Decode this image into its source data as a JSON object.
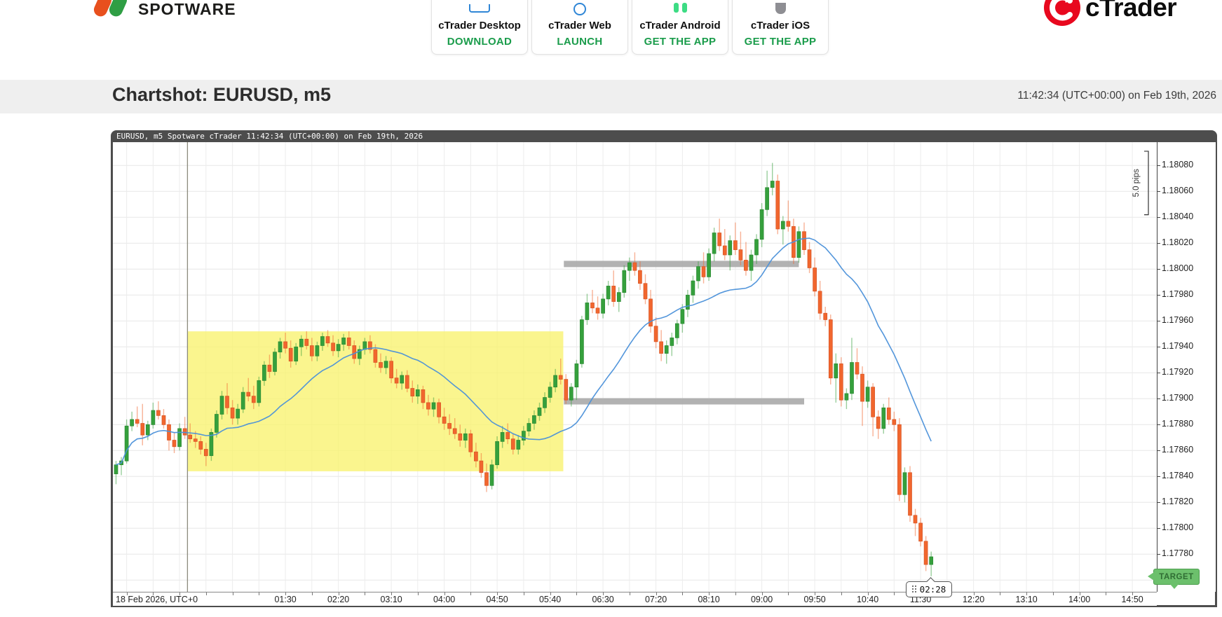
{
  "header": {
    "spotware_logo_text": "SPOTWARE",
    "ctrader_logo_text": "cTrader",
    "accent_green": "#1a9c4b",
    "logo_red": "#e8501e",
    "logo_green": "#2f9e44",
    "apps": [
      {
        "name": "cTrader Desktop",
        "action": "DOWNLOAD",
        "icon": "desktop-icon"
      },
      {
        "name": "cTrader Web",
        "action": "LAUNCH",
        "icon": "globe-icon"
      },
      {
        "name": "cTrader Android",
        "action": "GET THE APP",
        "icon": "android-icon"
      },
      {
        "name": "cTrader iOS",
        "action": "GET THE APP",
        "icon": "apple-icon"
      }
    ]
  },
  "titlebar": {
    "title": "Chartshot: EURUSD, m5",
    "timestamp": "11:42:34 (UTC+00:00) on Feb 19th, 2026"
  },
  "chart": {
    "header_text": "EURUSD, m5 Spotware cTrader 11:42:34 (UTC+00:00) on Feb 19th, 2026",
    "date_label": "18 Feb 2026, UTC+0",
    "colors": {
      "up": "#35a03c",
      "up_stroke": "#2c8a33",
      "down": "#f1662e",
      "down_stroke": "#d85525",
      "grid": "#ececec",
      "frame": "#4d4d4d",
      "yellow_zone": "rgba(249,242,110,0.78)",
      "gray_bar": "#ababab",
      "separator": "#8b8a7d"
    }
  },
  "chart_data": {
    "type": "candlestick",
    "symbol": "EURUSD",
    "timeframe": "m5",
    "title": "EURUSD, m5 Spotware cTrader",
    "y_axis": {
      "min": 1.17751,
      "max": 1.18098,
      "tick_step": 0.0002,
      "ticks": [
        "1.18080",
        "1.18060",
        "1.18040",
        "1.18020",
        "1.18000",
        "1.17980",
        "1.17960",
        "1.17940",
        "1.17920",
        "1.17900",
        "1.17880",
        "1.17860",
        "1.17840",
        "1.17820",
        "1.17800",
        "1.17780"
      ]
    },
    "x_ticks": [
      "01:30",
      "02:20",
      "03:10",
      "04:00",
      "04:50",
      "05:40",
      "06:30",
      "07:20",
      "08:10",
      "09:00",
      "09:50",
      "10:40",
      "11:30",
      "12:20",
      "13:10",
      "14:00",
      "14:50"
    ],
    "indicator": {
      "type": "sma",
      "period": 20,
      "color": "#4a90d9"
    },
    "scale_bracket": {
      "label": "5.0 pips",
      "top": 1.18091,
      "bottom": 1.18042
    },
    "annotations": {
      "yellow_zone": {
        "from": "00:00",
        "to": "05:55",
        "top": 1.17952,
        "bottom": 1.17844
      },
      "day_separator": {
        "time": "00:00"
      },
      "resistance_bar": {
        "from": "05:55",
        "to": "09:35",
        "price": 1.18004
      },
      "support_bar": {
        "from": "05:55",
        "to": "09:40",
        "price": 1.17898
      },
      "target": {
        "label": "TARGET",
        "price": 1.17763,
        "color": "#6cc06c"
      },
      "countdown": {
        "label": "02:28",
        "time": "11:40"
      }
    },
    "candles": [
      [
        "22:50",
        1.17842,
        1.17852,
        1.17834,
        1.17849
      ],
      [
        "22:55",
        1.17849,
        1.17855,
        1.17841,
        1.17852
      ],
      [
        "23:00",
        1.17852,
        1.17884,
        1.1785,
        1.17879
      ],
      [
        "23:05",
        1.17879,
        1.1789,
        1.17875,
        1.17884
      ],
      [
        "23:10",
        1.17884,
        1.17894,
        1.17878,
        1.17881
      ],
      [
        "23:15",
        1.17881,
        1.17896,
        1.17864,
        1.17872
      ],
      [
        "23:20",
        1.17872,
        1.17883,
        1.17868,
        1.1788
      ],
      [
        "23:25",
        1.1788,
        1.17897,
        1.17877,
        1.17891
      ],
      [
        "23:30",
        1.17891,
        1.17898,
        1.17884,
        1.17887
      ],
      [
        "23:35",
        1.17887,
        1.17892,
        1.17877,
        1.1788
      ],
      [
        "23:40",
        1.1788,
        1.17884,
        1.1786,
        1.17868
      ],
      [
        "23:45",
        1.17868,
        1.17874,
        1.17858,
        1.17863
      ],
      [
        "23:50",
        1.17863,
        1.17881,
        1.1786,
        1.17877
      ],
      [
        "23:55",
        1.17877,
        1.17886,
        1.17869,
        1.17872
      ],
      [
        "00:00",
        1.17872,
        1.17881,
        1.17866,
        1.17869
      ],
      [
        "00:05",
        1.17869,
        1.17875,
        1.17862,
        1.17867
      ],
      [
        "00:10",
        1.17867,
        1.17871,
        1.17857,
        1.17861
      ],
      [
        "00:15",
        1.17861,
        1.17866,
        1.17848,
        1.17856
      ],
      [
        "00:20",
        1.17856,
        1.17877,
        1.17852,
        1.17874
      ],
      [
        "00:25",
        1.17874,
        1.17891,
        1.1787,
        1.17888
      ],
      [
        "00:30",
        1.17888,
        1.17906,
        1.17884,
        1.17902
      ],
      [
        "00:35",
        1.17902,
        1.17912,
        1.17888,
        1.17893
      ],
      [
        "00:40",
        1.17893,
        1.17899,
        1.1788,
        1.17885
      ],
      [
        "00:45",
        1.17885,
        1.17896,
        1.1788,
        1.17892
      ],
      [
        "00:50",
        1.17892,
        1.17909,
        1.17889,
        1.17905
      ],
      [
        "00:55",
        1.17905,
        1.17916,
        1.17898,
        1.17902
      ],
      [
        "01:00",
        1.17902,
        1.1791,
        1.17892,
        1.17897
      ],
      [
        "01:05",
        1.17897,
        1.17917,
        1.17894,
        1.17914
      ],
      [
        "01:10",
        1.17914,
        1.17929,
        1.1791,
        1.17926
      ],
      [
        "01:15",
        1.17926,
        1.17934,
        1.17916,
        1.17921
      ],
      [
        "01:20",
        1.17921,
        1.17939,
        1.17918,
        1.17936
      ],
      [
        "01:25",
        1.17936,
        1.17947,
        1.17931,
        1.17944
      ],
      [
        "01:30",
        1.17944,
        1.17951,
        1.17935,
        1.17939
      ],
      [
        "01:35",
        1.17939,
        1.17945,
        1.17924,
        1.17929
      ],
      [
        "01:40",
        1.17929,
        1.17943,
        1.17926,
        1.1794
      ],
      [
        "01:45",
        1.1794,
        1.17949,
        1.17933,
        1.17946
      ],
      [
        "01:50",
        1.17946,
        1.17952,
        1.17938,
        1.17941
      ],
      [
        "01:55",
        1.17941,
        1.17947,
        1.17929,
        1.17933
      ],
      [
        "02:00",
        1.17933,
        1.17944,
        1.17929,
        1.17941
      ],
      [
        "02:05",
        1.17941,
        1.17951,
        1.17937,
        1.17948
      ],
      [
        "02:10",
        1.17948,
        1.17953,
        1.1794,
        1.17943
      ],
      [
        "02:15",
        1.17943,
        1.17949,
        1.17933,
        1.17937
      ],
      [
        "02:20",
        1.17937,
        1.17946,
        1.17932,
        1.17942
      ],
      [
        "02:25",
        1.17942,
        1.1795,
        1.17937,
        1.17947
      ],
      [
        "02:30",
        1.17947,
        1.17952,
        1.17938,
        1.17941
      ],
      [
        "02:35",
        1.17941,
        1.17945,
        1.17927,
        1.17931
      ],
      [
        "02:40",
        1.17931,
        1.17941,
        1.17926,
        1.17938
      ],
      [
        "02:45",
        1.17938,
        1.17947,
        1.17934,
        1.17944
      ],
      [
        "02:50",
        1.17944,
        1.17949,
        1.17935,
        1.17938
      ],
      [
        "02:55",
        1.17938,
        1.17942,
        1.17924,
        1.17928
      ],
      [
        "03:00",
        1.17928,
        1.17935,
        1.1792,
        1.17924
      ],
      [
        "03:05",
        1.17924,
        1.17933,
        1.17919,
        1.17929
      ],
      [
        "03:10",
        1.17929,
        1.17932,
        1.17912,
        1.17916
      ],
      [
        "03:15",
        1.17916,
        1.17923,
        1.17908,
        1.17912
      ],
      [
        "03:20",
        1.17912,
        1.17921,
        1.17907,
        1.17918
      ],
      [
        "03:25",
        1.17918,
        1.17922,
        1.17905,
        1.17908
      ],
      [
        "03:30",
        1.17908,
        1.17914,
        1.17897,
        1.17902
      ],
      [
        "03:35",
        1.17902,
        1.17911,
        1.17896,
        1.17907
      ],
      [
        "03:40",
        1.17907,
        1.1791,
        1.17892,
        1.17897
      ],
      [
        "03:45",
        1.17897,
        1.17903,
        1.17887,
        1.17892
      ],
      [
        "03:50",
        1.17892,
        1.17901,
        1.17886,
        1.17897
      ],
      [
        "03:55",
        1.17897,
        1.179,
        1.17881,
        1.17886
      ],
      [
        "04:00",
        1.17886,
        1.17893,
        1.17876,
        1.17881
      ],
      [
        "04:05",
        1.17881,
        1.17888,
        1.17872,
        1.17877
      ],
      [
        "04:10",
        1.17877,
        1.17885,
        1.17869,
        1.17873
      ],
      [
        "04:15",
        1.17873,
        1.1788,
        1.17863,
        1.17868
      ],
      [
        "04:20",
        1.17868,
        1.17877,
        1.17862,
        1.17873
      ],
      [
        "04:25",
        1.17873,
        1.17876,
        1.17855,
        1.17859
      ],
      [
        "04:30",
        1.17859,
        1.17866,
        1.17847,
        1.17852
      ],
      [
        "04:35",
        1.17852,
        1.17858,
        1.17839,
        1.17843
      ],
      [
        "04:40",
        1.17843,
        1.1785,
        1.17828,
        1.17833
      ],
      [
        "04:45",
        1.17833,
        1.17853,
        1.1783,
        1.17849
      ],
      [
        "04:50",
        1.17849,
        1.17871,
        1.17846,
        1.17867
      ],
      [
        "04:55",
        1.17867,
        1.17879,
        1.17862,
        1.17874
      ],
      [
        "05:00",
        1.17874,
        1.17881,
        1.17865,
        1.17869
      ],
      [
        "05:05",
        1.17869,
        1.17873,
        1.17857,
        1.17861
      ],
      [
        "05:10",
        1.17861,
        1.17872,
        1.17857,
        1.17868
      ],
      [
        "05:15",
        1.17868,
        1.17879,
        1.17864,
        1.17875
      ],
      [
        "05:20",
        1.17875,
        1.17885,
        1.17871,
        1.17881
      ],
      [
        "05:25",
        1.17881,
        1.17891,
        1.17876,
        1.17887
      ],
      [
        "05:30",
        1.17887,
        1.17897,
        1.17883,
        1.17893
      ],
      [
        "05:35",
        1.17893,
        1.17905,
        1.17889,
        1.17901
      ],
      [
        "05:40",
        1.17901,
        1.17913,
        1.17897,
        1.17909
      ],
      [
        "05:45",
        1.17909,
        1.17923,
        1.17905,
        1.17918
      ],
      [
        "05:50",
        1.17918,
        1.17931,
        1.17911,
        1.17915
      ],
      [
        "05:55",
        1.17915,
        1.17919,
        1.17896,
        1.17899
      ],
      [
        "06:00",
        1.17899,
        1.17912,
        1.17894,
        1.17909
      ],
      [
        "06:05",
        1.17909,
        1.1793,
        1.17899,
        1.17927
      ],
      [
        "06:10",
        1.17927,
        1.17964,
        1.17924,
        1.17961
      ],
      [
        "06:15",
        1.17961,
        1.17981,
        1.17957,
        1.17974
      ],
      [
        "06:20",
        1.17974,
        1.17984,
        1.17966,
        1.1797
      ],
      [
        "06:25",
        1.1797,
        1.17979,
        1.17961,
        1.17966
      ],
      [
        "06:30",
        1.17966,
        1.17981,
        1.17962,
        1.17977
      ],
      [
        "06:35",
        1.17977,
        1.17991,
        1.17972,
        1.17987
      ],
      [
        "06:40",
        1.17987,
        1.17999,
        1.17971,
        1.17975
      ],
      [
        "06:45",
        1.17975,
        1.17986,
        1.17967,
        1.17982
      ],
      [
        "06:50",
        1.17982,
        1.18003,
        1.17978,
        1.17999
      ],
      [
        "06:55",
        1.17999,
        1.18009,
        1.17991,
        1.18005
      ],
      [
        "07:00",
        1.18005,
        1.18013,
        1.17995,
        1.17999
      ],
      [
        "07:05",
        1.17999,
        1.18006,
        1.17984,
        1.17989
      ],
      [
        "07:10",
        1.17989,
        1.17996,
        1.17973,
        1.17977
      ],
      [
        "07:15",
        1.17977,
        1.17984,
        1.17951,
        1.17956
      ],
      [
        "07:20",
        1.17956,
        1.17963,
        1.17939,
        1.17944
      ],
      [
        "07:25",
        1.17944,
        1.17953,
        1.17929,
        1.17935
      ],
      [
        "07:30",
        1.17935,
        1.17945,
        1.17927,
        1.17941
      ],
      [
        "07:35",
        1.17941,
        1.17951,
        1.17933,
        1.17947
      ],
      [
        "07:40",
        1.17947,
        1.17961,
        1.17942,
        1.17958
      ],
      [
        "07:45",
        1.17958,
        1.17973,
        1.17951,
        1.17969
      ],
      [
        "07:50",
        1.17969,
        1.17984,
        1.17963,
        1.1798
      ],
      [
        "07:55",
        1.1798,
        1.17995,
        1.17974,
        1.17991
      ],
      [
        "08:00",
        1.17991,
        1.18006,
        1.17985,
        1.18002
      ],
      [
        "08:05",
        1.18002,
        1.18013,
        1.17989,
        1.17994
      ],
      [
        "08:10",
        1.17994,
        1.18016,
        1.17991,
        1.18012
      ],
      [
        "08:15",
        1.18012,
        1.18032,
        1.18006,
        1.18028
      ],
      [
        "08:20",
        1.18028,
        1.18039,
        1.18014,
        1.18018
      ],
      [
        "08:25",
        1.18018,
        1.18031,
        1.18007,
        1.18011
      ],
      [
        "08:30",
        1.18011,
        1.18026,
        1.17999,
        1.18022
      ],
      [
        "08:35",
        1.18022,
        1.18036,
        1.18011,
        1.18015
      ],
      [
        "08:40",
        1.18015,
        1.18029,
        1.18003,
        1.18007
      ],
      [
        "08:45",
        1.18007,
        1.18021,
        1.17995,
        1.17999
      ],
      [
        "08:50",
        1.17999,
        1.18015,
        1.17991,
        1.18011
      ],
      [
        "08:55",
        1.18011,
        1.18027,
        1.18004,
        1.18023
      ],
      [
        "09:00",
        1.18023,
        1.18051,
        1.18017,
        1.18046
      ],
      [
        "09:05",
        1.18046,
        1.18076,
        1.18041,
        1.18063
      ],
      [
        "09:10",
        1.18063,
        1.18082,
        1.18057,
        1.18068
      ],
      [
        "09:15",
        1.18068,
        1.18073,
        1.18027,
        1.18031
      ],
      [
        "09:20",
        1.18031,
        1.18041,
        1.18019,
        1.18037
      ],
      [
        "09:25",
        1.18037,
        1.18053,
        1.18029,
        1.18033
      ],
      [
        "09:30",
        1.18033,
        1.18039,
        1.18004,
        1.18009
      ],
      [
        "09:35",
        1.18009,
        1.18033,
        1.18005,
        1.18029
      ],
      [
        "09:40",
        1.18029,
        1.18036,
        1.18011,
        1.18015
      ],
      [
        "09:45",
        1.18015,
        1.18021,
        1.17997,
        1.18001
      ],
      [
        "09:50",
        1.18001,
        1.18009,
        1.17979,
        1.17983
      ],
      [
        "09:55",
        1.17983,
        1.17991,
        1.17961,
        1.17966
      ],
      [
        "10:00",
        1.17966,
        1.17971,
        1.17956,
        1.17961
      ],
      [
        "10:05",
        1.17961,
        1.17965,
        1.17911,
        1.17916
      ],
      [
        "10:10",
        1.17916,
        1.17935,
        1.17897,
        1.17927
      ],
      [
        "10:15",
        1.17927,
        1.17932,
        1.17894,
        1.17899
      ],
      [
        "10:20",
        1.17899,
        1.17908,
        1.17892,
        1.17904
      ],
      [
        "10:25",
        1.17904,
        1.17947,
        1.17899,
        1.17928
      ],
      [
        "10:30",
        1.17928,
        1.17939,
        1.17915,
        1.17919
      ],
      [
        "10:35",
        1.17919,
        1.17925,
        1.17879,
        1.17898
      ],
      [
        "10:40",
        1.17898,
        1.17914,
        1.17893,
        1.17909
      ],
      [
        "10:45",
        1.17909,
        1.17912,
        1.17871,
        1.17886
      ],
      [
        "10:50",
        1.17886,
        1.17891,
        1.17869,
        1.17877
      ],
      [
        "10:55",
        1.17877,
        1.17896,
        1.17873,
        1.17893
      ],
      [
        "11:00",
        1.17893,
        1.17901,
        1.1788,
        1.17884
      ],
      [
        "11:05",
        1.17884,
        1.1789,
        1.17875,
        1.1788
      ],
      [
        "11:10",
        1.1788,
        1.17885,
        1.17821,
        1.17826
      ],
      [
        "11:15",
        1.17826,
        1.17847,
        1.1782,
        1.17843
      ],
      [
        "11:20",
        1.17843,
        1.17848,
        1.17805,
        1.1781
      ],
      [
        "11:25",
        1.1781,
        1.17815,
        1.17794,
        1.17804
      ],
      [
        "11:30",
        1.17804,
        1.17808,
        1.17786,
        1.1779
      ],
      [
        "11:35",
        1.1779,
        1.17794,
        1.17767,
        1.17772
      ],
      [
        "11:40",
        1.17772,
        1.17782,
        1.17763,
        1.17778
      ]
    ]
  }
}
